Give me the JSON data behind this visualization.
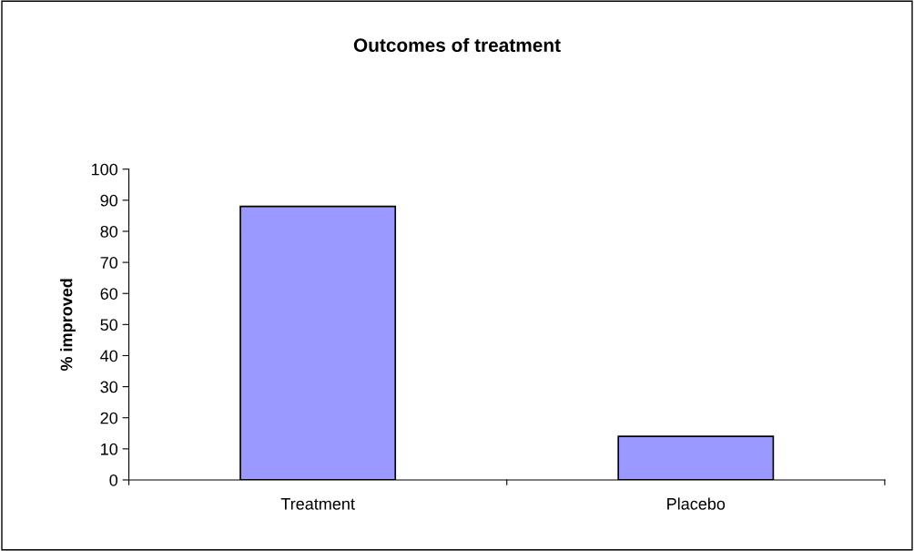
{
  "chart_data": {
    "type": "bar",
    "title": "Outcomes of treatment",
    "ylabel": "% improved",
    "categories": [
      "Treatment",
      "Placebo"
    ],
    "values": [
      88,
      14
    ],
    "color": "#9999ff",
    "ylim": [
      0,
      100
    ],
    "yticks": [
      0,
      10,
      20,
      30,
      40,
      50,
      60,
      70,
      80,
      90,
      100
    ],
    "grid": false,
    "legend": false
  }
}
